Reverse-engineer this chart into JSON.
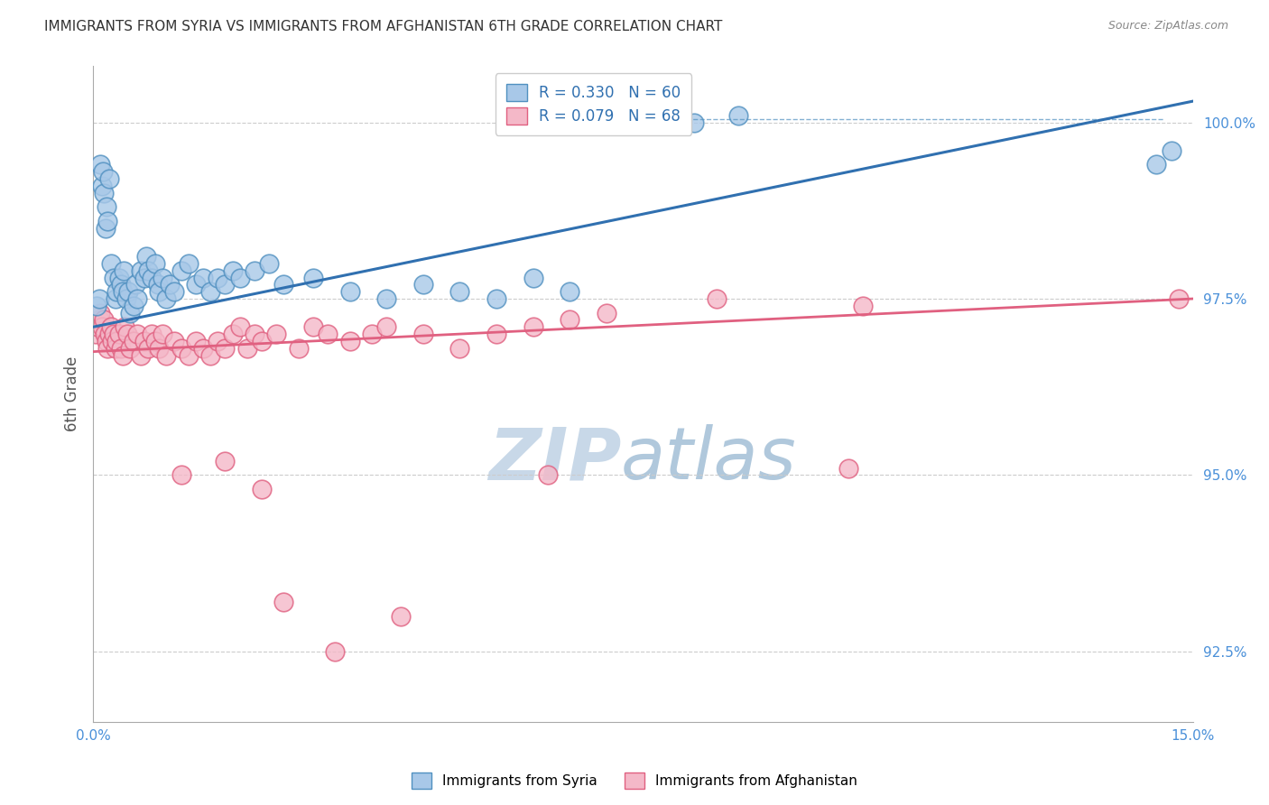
{
  "title": "IMMIGRANTS FROM SYRIA VS IMMIGRANTS FROM AFGHANISTAN 6TH GRADE CORRELATION CHART",
  "source": "Source: ZipAtlas.com",
  "ylabel": "6th Grade",
  "xlim": [
    0.0,
    15.0
  ],
  "ylim": [
    91.5,
    100.8
  ],
  "yticks": [
    92.5,
    95.0,
    97.5,
    100.0
  ],
  "ytick_labels": [
    "92.5%",
    "95.0%",
    "97.5%",
    "100.0%"
  ],
  "xtick_labels": [
    "0.0%",
    "",
    "",
    "",
    "",
    "",
    "15.0%"
  ],
  "xticks": [
    0.0,
    2.5,
    5.0,
    7.5,
    10.0,
    12.5,
    15.0
  ],
  "syria_color": "#a8c8e8",
  "afghan_color": "#f4b8c8",
  "syria_edge_color": "#5090c0",
  "afghan_edge_color": "#e06080",
  "syria_line_color": "#3070b0",
  "afghan_line_color": "#e06080",
  "watermark_zip_color": "#c8d8e8",
  "watermark_atlas_color": "#b0c8dc",
  "background_color": "#ffffff",
  "title_color": "#333333",
  "title_fontsize": 11,
  "tick_label_color": "#4a90d9",
  "ylabel_color": "#555555",
  "syria_trend": [
    0.0,
    15.0,
    97.1,
    100.3
  ],
  "afghan_trend": [
    0.0,
    15.0,
    96.75,
    97.5
  ],
  "syria_x": [
    0.05,
    0.08,
    0.1,
    0.12,
    0.13,
    0.15,
    0.17,
    0.18,
    0.2,
    0.22,
    0.25,
    0.28,
    0.3,
    0.32,
    0.35,
    0.38,
    0.4,
    0.42,
    0.45,
    0.48,
    0.5,
    0.55,
    0.58,
    0.6,
    0.65,
    0.7,
    0.72,
    0.75,
    0.8,
    0.85,
    0.88,
    0.9,
    0.95,
    1.0,
    1.05,
    1.1,
    1.2,
    1.3,
    1.4,
    1.5,
    1.6,
    1.7,
    1.8,
    1.9,
    2.0,
    2.2,
    2.4,
    2.6,
    3.0,
    3.5,
    4.0,
    4.5,
    5.0,
    5.5,
    6.0,
    6.5,
    8.2,
    8.8,
    14.5,
    14.7
  ],
  "syria_y": [
    97.4,
    97.5,
    99.4,
    99.1,
    99.3,
    99.0,
    98.5,
    98.8,
    98.6,
    99.2,
    98.0,
    97.8,
    97.5,
    97.6,
    97.8,
    97.7,
    97.6,
    97.9,
    97.5,
    97.6,
    97.3,
    97.4,
    97.7,
    97.5,
    97.9,
    97.8,
    98.1,
    97.9,
    97.8,
    98.0,
    97.7,
    97.6,
    97.8,
    97.5,
    97.7,
    97.6,
    97.9,
    98.0,
    97.7,
    97.8,
    97.6,
    97.8,
    97.7,
    97.9,
    97.8,
    97.9,
    98.0,
    97.7,
    97.8,
    97.6,
    97.5,
    97.7,
    97.6,
    97.5,
    97.8,
    97.6,
    100.0,
    100.1,
    99.4,
    99.6
  ],
  "afghan_x": [
    0.04,
    0.06,
    0.08,
    0.1,
    0.12,
    0.14,
    0.16,
    0.18,
    0.2,
    0.22,
    0.24,
    0.26,
    0.28,
    0.3,
    0.32,
    0.35,
    0.38,
    0.4,
    0.43,
    0.46,
    0.5,
    0.55,
    0.6,
    0.65,
    0.7,
    0.75,
    0.8,
    0.85,
    0.9,
    0.95,
    1.0,
    1.1,
    1.2,
    1.3,
    1.4,
    1.5,
    1.6,
    1.7,
    1.8,
    1.9,
    2.0,
    2.1,
    2.2,
    2.3,
    2.5,
    2.8,
    3.0,
    3.2,
    3.5,
    3.8,
    4.0,
    4.5,
    5.0,
    5.5,
    6.0,
    6.5,
    7.0,
    8.5,
    10.5,
    14.8,
    1.2,
    1.8,
    2.3,
    2.6,
    3.3,
    4.2,
    6.2,
    10.3
  ],
  "afghan_y": [
    97.0,
    97.1,
    97.2,
    97.3,
    97.1,
    97.2,
    97.0,
    96.9,
    96.8,
    97.0,
    97.1,
    96.9,
    97.0,
    96.8,
    96.9,
    97.0,
    96.8,
    96.7,
    97.1,
    97.0,
    96.8,
    96.9,
    97.0,
    96.7,
    96.9,
    96.8,
    97.0,
    96.9,
    96.8,
    97.0,
    96.7,
    96.9,
    96.8,
    96.7,
    96.9,
    96.8,
    96.7,
    96.9,
    96.8,
    97.0,
    97.1,
    96.8,
    97.0,
    96.9,
    97.0,
    96.8,
    97.1,
    97.0,
    96.9,
    97.0,
    97.1,
    97.0,
    96.8,
    97.0,
    97.1,
    97.2,
    97.3,
    97.5,
    97.4,
    97.5,
    95.0,
    95.2,
    94.8,
    93.2,
    92.5,
    93.0,
    95.0,
    95.1
  ]
}
